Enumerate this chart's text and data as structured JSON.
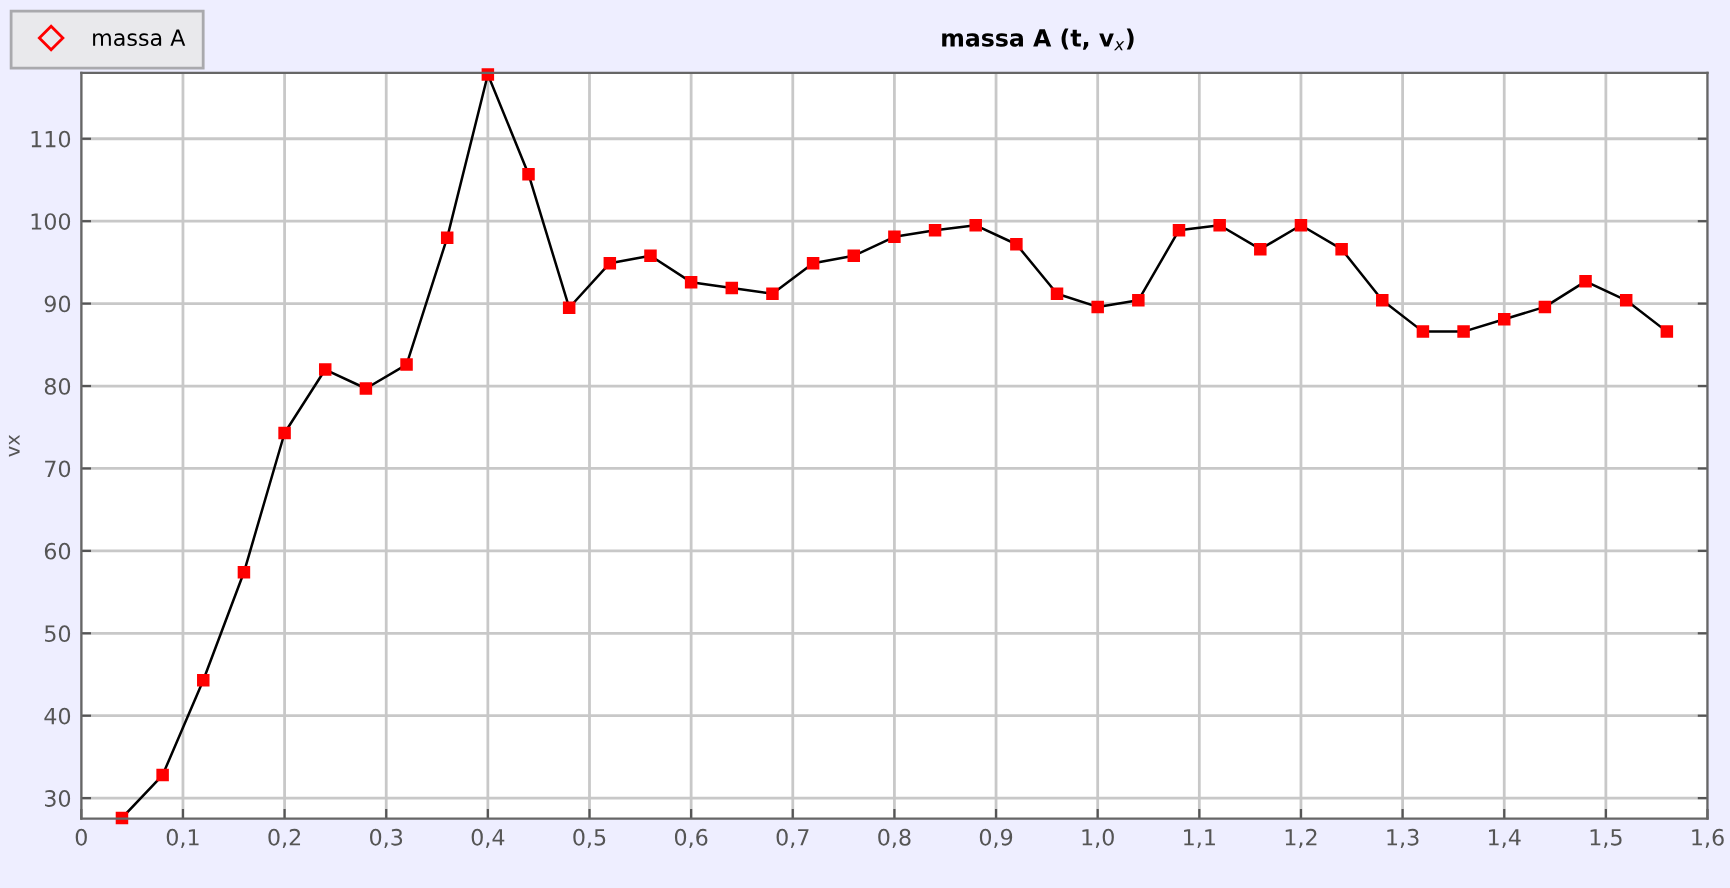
{
  "chart_data": {
    "type": "line",
    "title": "massa A (t, v$_{x}$)",
    "ylabel": "vx",
    "x": [
      0.04,
      0.08,
      0.12,
      0.16,
      0.2,
      0.24,
      0.28,
      0.32,
      0.36,
      0.4,
      0.44,
      0.48,
      0.52,
      0.56,
      0.6,
      0.64,
      0.68,
      0.72,
      0.76,
      0.8,
      0.84,
      0.88,
      0.92,
      0.96,
      1.0,
      1.04,
      1.08,
      1.12,
      1.16,
      1.2,
      1.24,
      1.28,
      1.32,
      1.36,
      1.4,
      1.44,
      1.48,
      1.52,
      1.56
    ],
    "series": [
      {
        "name": "massa A",
        "color": "#ff0000",
        "values": [
          27.6,
          32.8,
          44.3,
          57.4,
          74.3,
          82.0,
          79.7,
          82.6,
          98.0,
          117.8,
          105.7,
          89.5,
          94.9,
          95.8,
          92.6,
          91.9,
          91.2,
          94.9,
          95.8,
          98.1,
          98.9,
          99.5,
          97.2,
          91.2,
          89.6,
          90.4,
          98.9,
          99.5,
          96.6,
          99.5,
          96.6,
          90.4,
          86.6,
          86.6,
          88.1,
          89.6,
          92.7,
          90.4,
          86.6
        ]
      }
    ],
    "xlim": [
      0,
      1.6
    ],
    "xticks": [
      {
        "value": 0,
        "label": "0"
      },
      {
        "value": 0.1,
        "label": "0,1"
      },
      {
        "value": 0.2,
        "label": "0,2"
      },
      {
        "value": 0.3,
        "label": "0,3"
      },
      {
        "value": 0.4,
        "label": "0,4"
      },
      {
        "value": 0.5,
        "label": "0,5"
      },
      {
        "value": 0.6,
        "label": "0,6"
      },
      {
        "value": 0.7,
        "label": "0,7"
      },
      {
        "value": 0.8,
        "label": "0,8"
      },
      {
        "value": 0.9,
        "label": "0,9"
      },
      {
        "value": 1.0,
        "label": "1,0"
      },
      {
        "value": 1.1,
        "label": "1,1"
      },
      {
        "value": 1.2,
        "label": "1,2"
      },
      {
        "value": 1.3,
        "label": "1,3"
      },
      {
        "value": 1.4,
        "label": "1,4"
      },
      {
        "value": 1.5,
        "label": "1,5"
      },
      {
        "value": 1.6,
        "label": "1,6"
      }
    ],
    "ylim": [
      27.5,
      118
    ],
    "yticks": [
      30,
      40,
      50,
      60,
      70,
      80,
      90,
      100,
      110
    ],
    "grid": true,
    "legend": "top left",
    "marker": "square",
    "line_style": "solid"
  }
}
